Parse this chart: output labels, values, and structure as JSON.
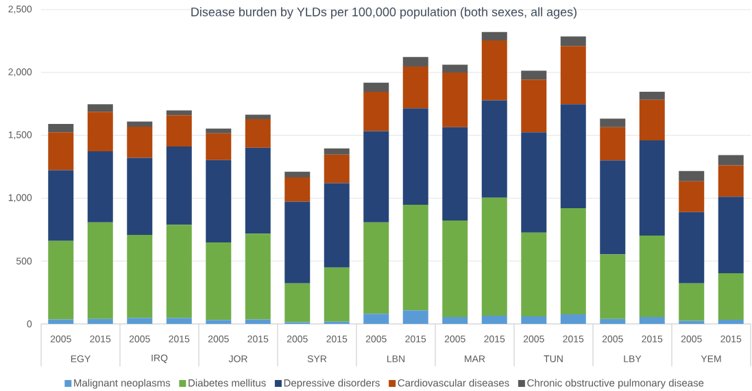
{
  "chart_data": {
    "type": "bar",
    "stacked": true,
    "title": "Disease burden by YLDs per 100,000 population (both sexes, all ages)",
    "categories": [
      "2005",
      "2015",
      "2005",
      "2015",
      "2005",
      "2015",
      "2005",
      "2015",
      "2005",
      "2015",
      "2005",
      "2015",
      "2005",
      "2015",
      "2005",
      "2015",
      "2005",
      "2015"
    ],
    "series": [
      {
        "name": "Malignant neoplasms",
        "color": "#5b9bd5",
        "values": [
          36,
          40,
          47,
          47,
          31,
          36,
          13,
          18,
          80,
          107,
          54,
          65,
          60,
          76,
          40,
          54,
          24,
          33
        ]
      },
      {
        "name": "Diabetes mellitus",
        "color": "#70ad47",
        "values": [
          624,
          767,
          661,
          742,
          617,
          681,
          310,
          430,
          727,
          840,
          768,
          938,
          666,
          844,
          513,
          648,
          299,
          370
        ]
      },
      {
        "name": "Depressive disorders",
        "color": "#264478",
        "values": [
          563,
          566,
          613,
          622,
          655,
          684,
          649,
          671,
          726,
          767,
          742,
          775,
          798,
          827,
          748,
          758,
          566,
          609
        ]
      },
      {
        "name": "Cardiovascular diseases",
        "color": "#b4470b",
        "values": [
          301,
          314,
          248,
          249,
          212,
          228,
          193,
          227,
          314,
          334,
          435,
          477,
          419,
          463,
          263,
          322,
          245,
          249
        ]
      },
      {
        "name": "Chronic obstructive pulmonary disease",
        "color": "#595959",
        "values": [
          67,
          60,
          40,
          38,
          38,
          35,
          45,
          49,
          72,
          75,
          62,
          67,
          71,
          76,
          69,
          65,
          82,
          82
        ]
      }
    ],
    "ylim": [
      0,
      2500
    ],
    "yticks": [
      0,
      500,
      {
        "value": 1000,
        "label": "1,000"
      },
      {
        "value": 1500,
        "label": "1,500"
      },
      {
        "value": 2000,
        "label": "2,000"
      },
      {
        "value": 2500,
        "label": "2,500"
      }
    ],
    "grid": "y",
    "legend": "bottom",
    "annotations": [
      "EGY",
      "IRQ",
      "JOR",
      "SYR",
      "LBN",
      "MAR",
      "TUN",
      "LBY",
      "YEM"
    ]
  }
}
